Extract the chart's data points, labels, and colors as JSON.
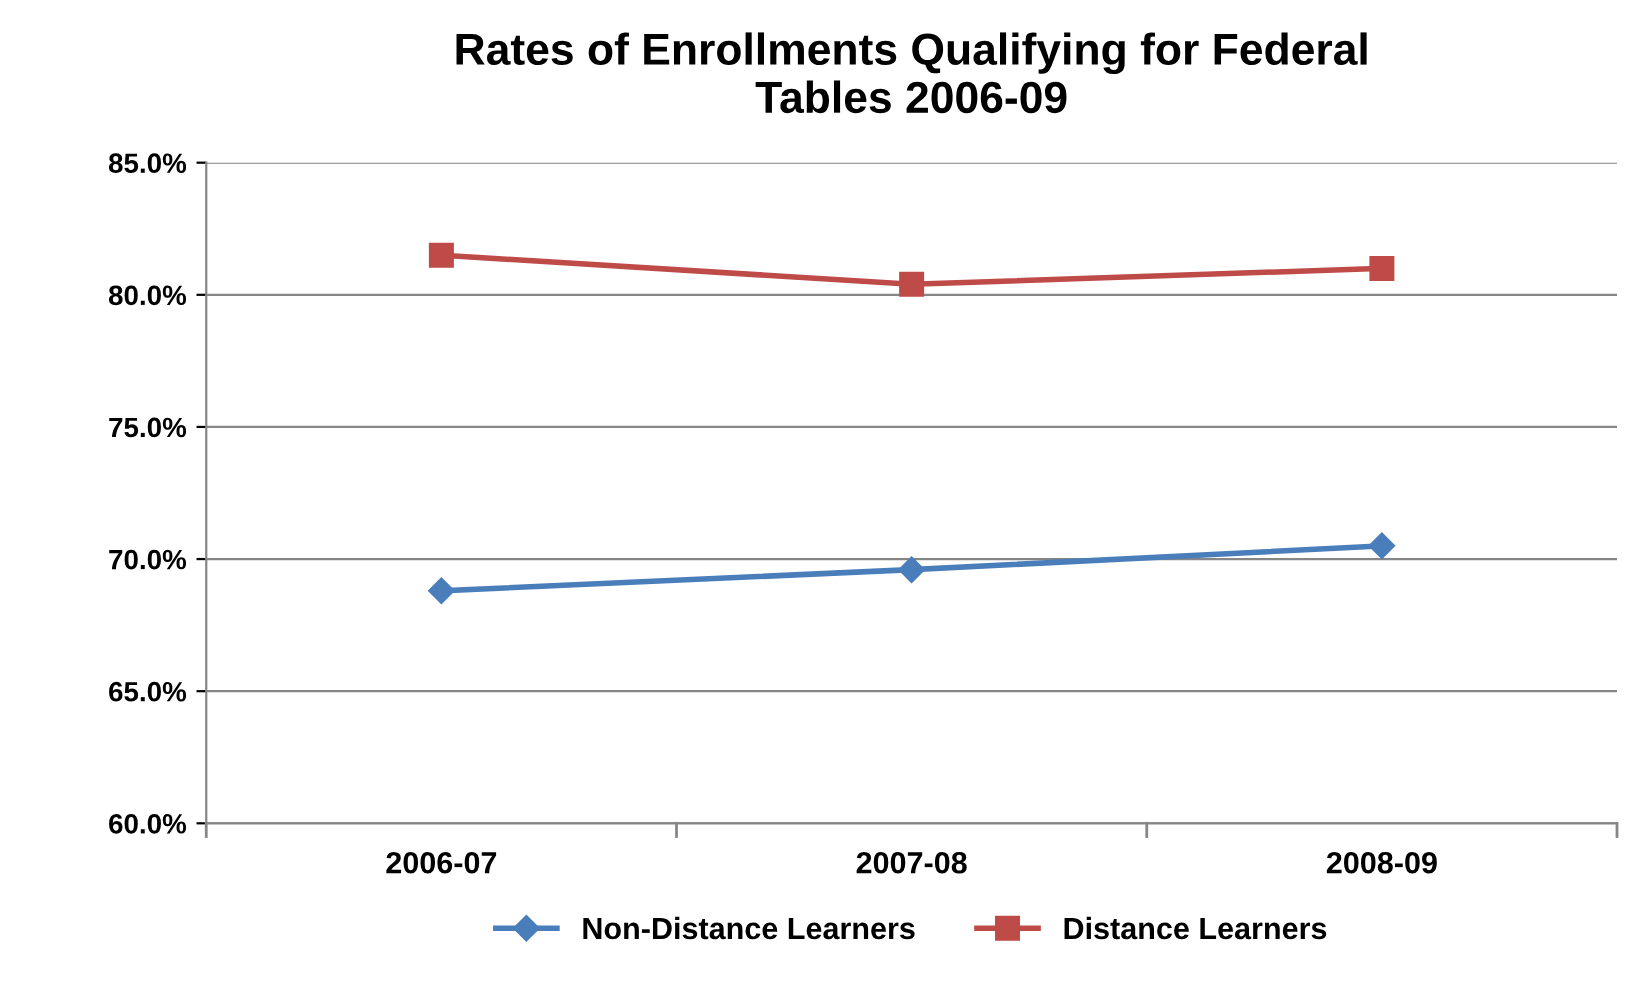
{
  "chart_data": {
    "type": "line",
    "title": "Rates of Enrollments Qualifying for Federal\nTables 2006-09",
    "categories": [
      "2006-07",
      "2007-08",
      "2008-09"
    ],
    "series": [
      {
        "name": "Non-Distance Learners",
        "color": "#4a7ebb",
        "values": [
          68.8,
          69.6,
          70.5
        ],
        "marker": "diamond"
      },
      {
        "name": "Distance Learners",
        "color": "#be4b48",
        "values": [
          81.5,
          80.4,
          81.0
        ],
        "marker": "square"
      }
    ],
    "ylim": [
      60,
      85
    ],
    "yticks": [
      {
        "value": 60,
        "label": "60.0%"
      },
      {
        "value": 65,
        "label": "65.0%"
      },
      {
        "value": 70,
        "label": "70.0%"
      },
      {
        "value": 75,
        "label": "75.0%"
      },
      {
        "value": 80,
        "label": "80.0%"
      },
      {
        "value": 85,
        "label": "85.0%"
      }
    ],
    "grid": "y",
    "legend": "bottom",
    "line_style": "solid"
  }
}
